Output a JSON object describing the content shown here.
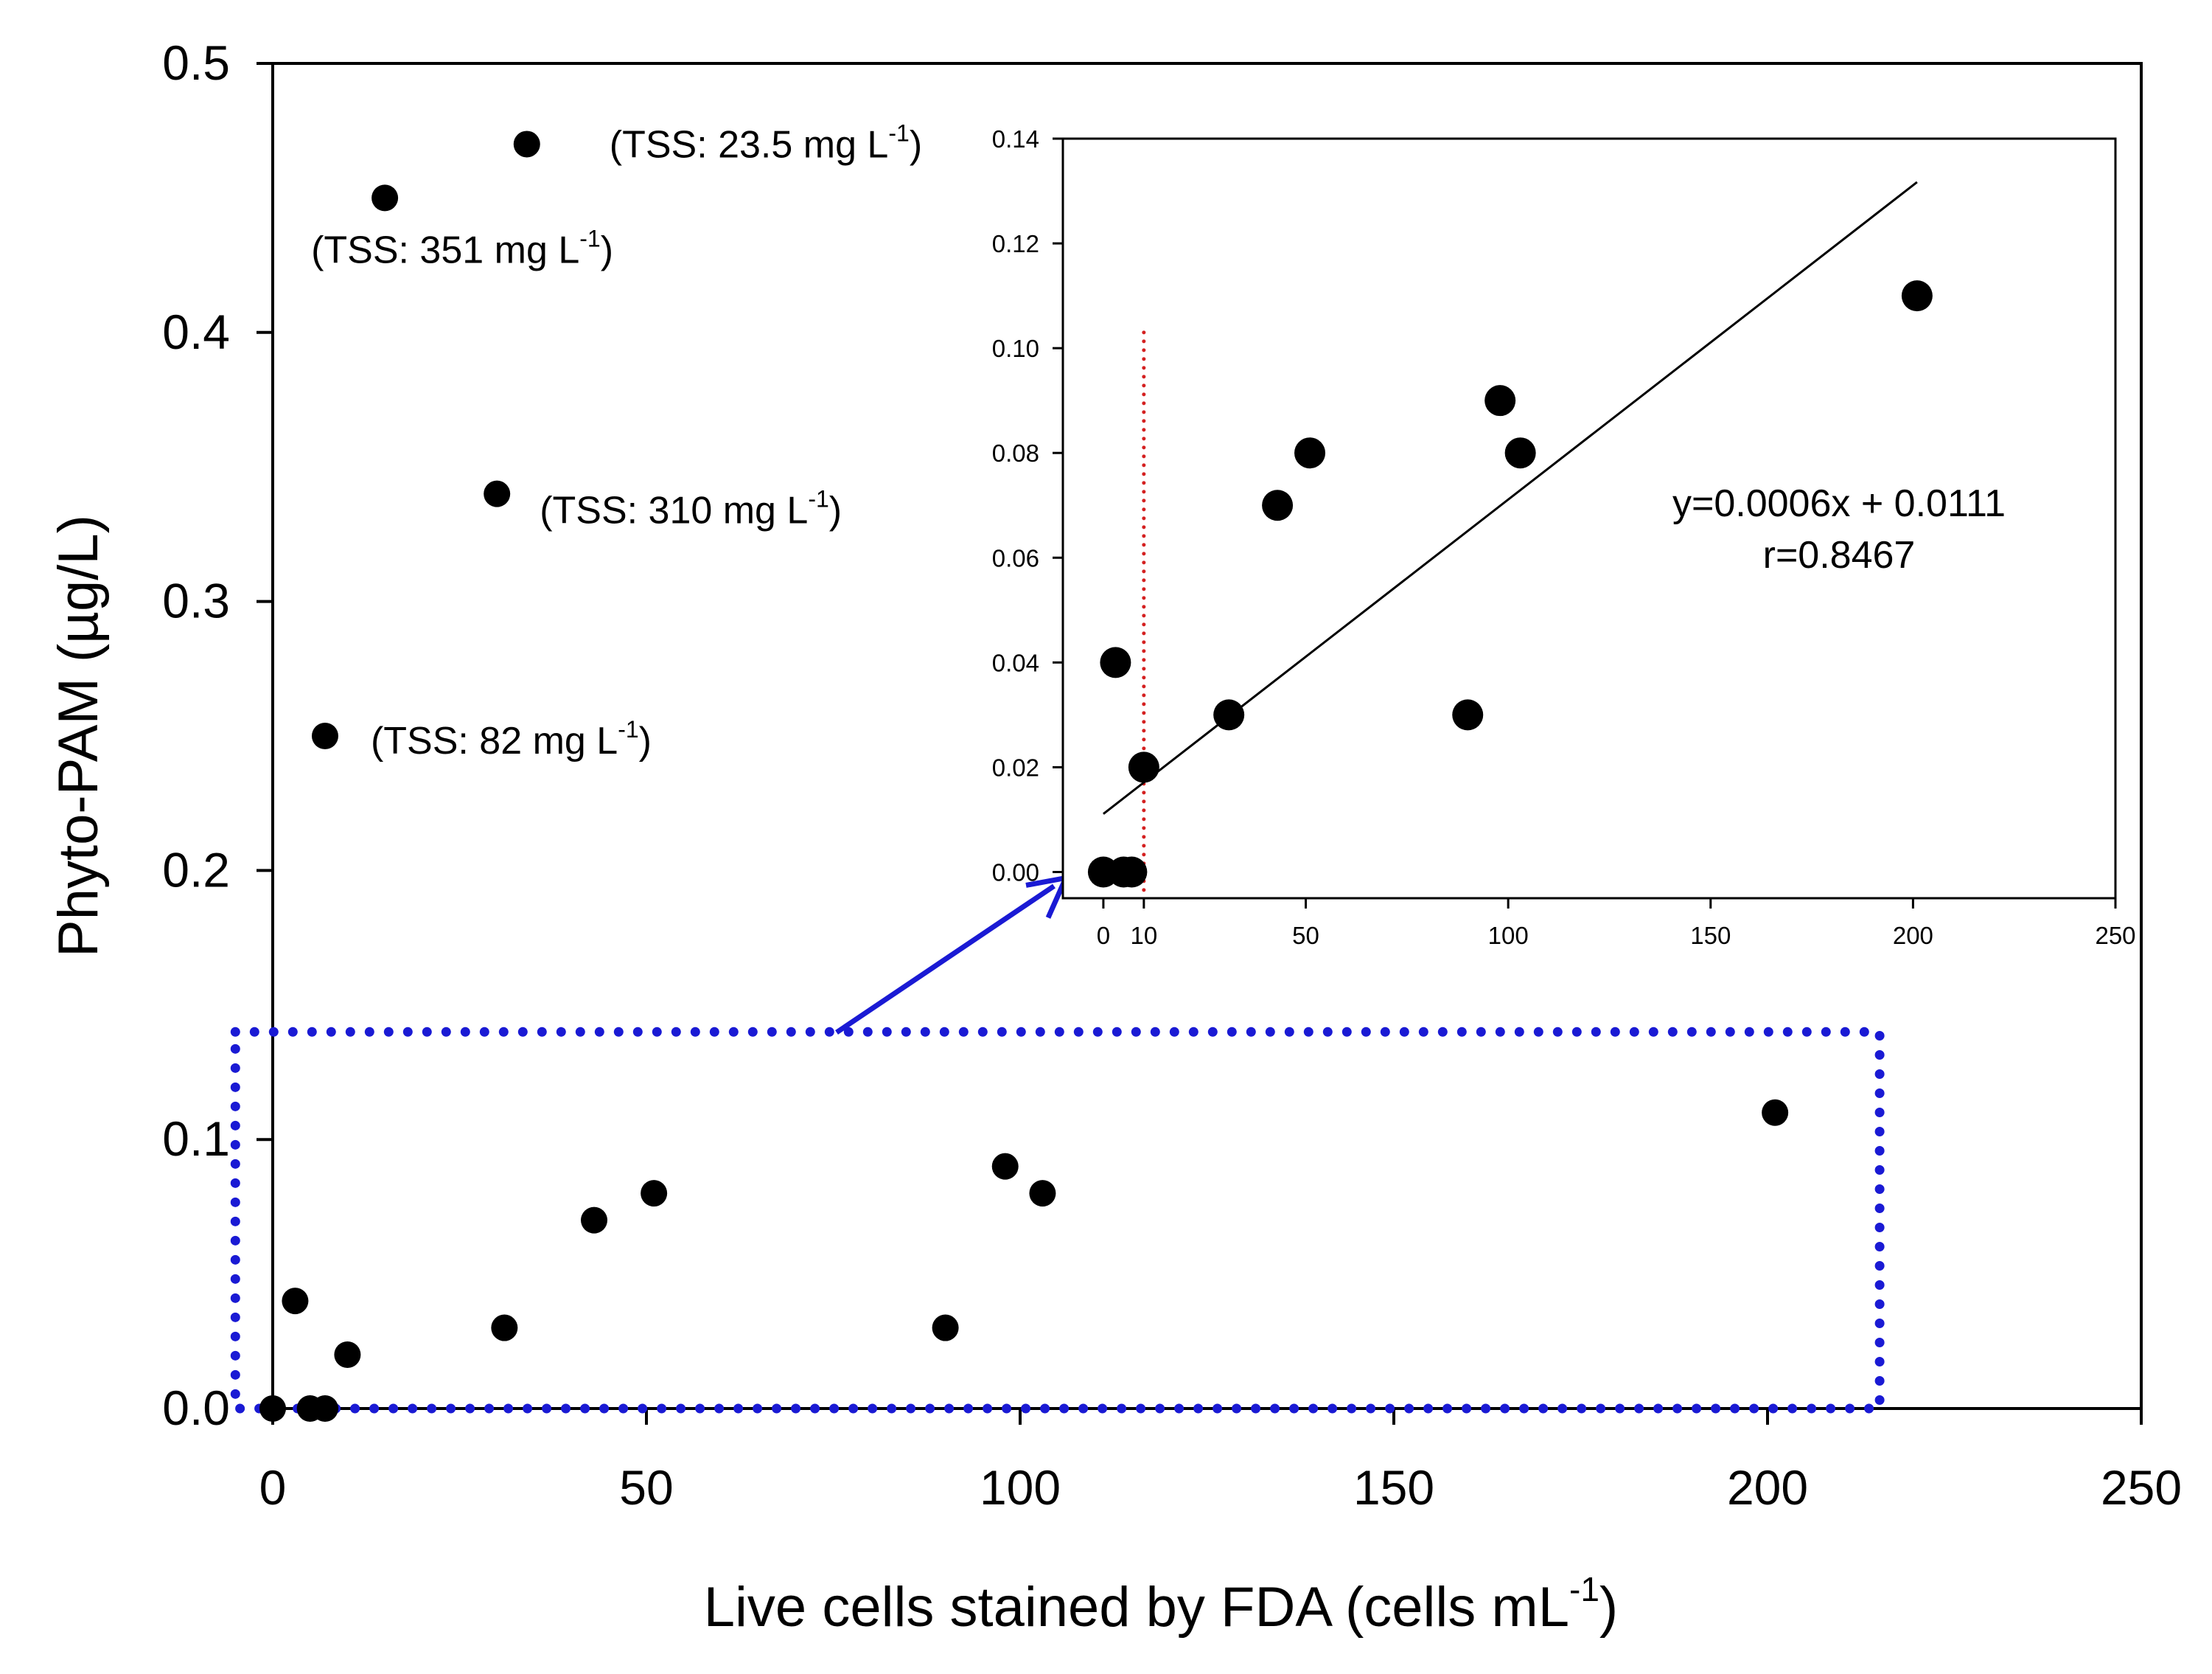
{
  "chart_data": [
    {
      "type": "scatter",
      "title": "",
      "xlabel": "Live cells stained by FDA (cells mL",
      "xlabel_sup": "-1",
      "xlabel_end": ")",
      "ylabel": "Phyto-PAM (µg/L)",
      "xlim": [
        0,
        250
      ],
      "ylim": [
        0,
        0.5
      ],
      "xticks": [
        0,
        50,
        100,
        150,
        200,
        250
      ],
      "yticks": [
        0.0,
        0.1,
        0.2,
        0.3,
        0.4,
        0.5
      ],
      "xtick_labels": [
        "0",
        "50",
        "100",
        "150",
        "200",
        "250"
      ],
      "ytick_labels": [
        "0.0",
        "0.1",
        "0.2",
        "0.3",
        "0.4",
        "0.5"
      ],
      "grid": false,
      "series": [
        {
          "points": [
            {
              "x": 0,
              "y": 0.0
            },
            {
              "x": 5,
              "y": 0.0
            },
            {
              "x": 7,
              "y": 0.0
            },
            {
              "x": 3,
              "y": 0.04
            },
            {
              "x": 10,
              "y": 0.02
            },
            {
              "x": 31,
              "y": 0.03
            },
            {
              "x": 43,
              "y": 0.07
            },
            {
              "x": 51,
              "y": 0.08
            },
            {
              "x": 90,
              "y": 0.03
            },
            {
              "x": 98,
              "y": 0.09
            },
            {
              "x": 103,
              "y": 0.08
            },
            {
              "x": 201,
              "y": 0.11
            },
            {
              "x": 15,
              "y": 0.45
            },
            {
              "x": 34,
              "y": 0.47
            },
            {
              "x": 30,
              "y": 0.34
            },
            {
              "x": 7,
              "y": 0.25
            }
          ]
        }
      ],
      "annotations": [
        {
          "text": "(TSS: 23.5 mg L",
          "sup": "-1",
          "end": ")",
          "x": 34,
          "y": 0.47
        },
        {
          "text": "(TSS: 351 mg L",
          "sup": "-1",
          "end": ")",
          "x": 15,
          "y": 0.45
        },
        {
          "text": "(TSS: 310 mg L",
          "sup": "-1",
          "end": ")",
          "x": 30,
          "y": 0.34
        },
        {
          "text": "(TSS: 82 mg L",
          "sup": "-1",
          "end": ")",
          "x": 7,
          "y": 0.25
        }
      ],
      "highlight_box": {
        "color": "#1a1ad4",
        "style": "dotted",
        "x_range": [
          -5,
          215
        ],
        "y_range": [
          0,
          0.14
        ]
      },
      "arrow_color": "#1a1ad4"
    },
    {
      "type": "scatter",
      "title": "",
      "xlabel": "",
      "ylabel": "",
      "xlim": [
        -10,
        250
      ],
      "ylim": [
        -0.005,
        0.14
      ],
      "xticks": [
        0,
        10,
        50,
        100,
        150,
        200,
        250
      ],
      "yticks": [
        0.0,
        0.02,
        0.04,
        0.06,
        0.08,
        0.1,
        0.12,
        0.14
      ],
      "xtick_labels": [
        "0",
        "10",
        "50",
        "100",
        "150",
        "200",
        "250"
      ],
      "ytick_labels": [
        "0.00",
        "0.02",
        "0.04",
        "0.06",
        "0.08",
        "0.10",
        "0.12",
        "0.14"
      ],
      "grid": false,
      "series": [
        {
          "points": [
            {
              "x": 0,
              "y": 0.0
            },
            {
              "x": 5,
              "y": 0.0
            },
            {
              "x": 7,
              "y": 0.0
            },
            {
              "x": 3,
              "y": 0.04
            },
            {
              "x": 10,
              "y": 0.02
            },
            {
              "x": 31,
              "y": 0.03
            },
            {
              "x": 43,
              "y": 0.07
            },
            {
              "x": 51,
              "y": 0.08
            },
            {
              "x": 90,
              "y": 0.03
            },
            {
              "x": 98,
              "y": 0.09
            },
            {
              "x": 103,
              "y": 0.08
            },
            {
              "x": 201,
              "y": 0.11
            }
          ]
        }
      ],
      "fit_line": {
        "slope": 0.0006,
        "intercept": 0.0111,
        "x_range": [
          0,
          201
        ]
      },
      "equation_lines": [
        "y=0.0006x + 0.0111",
        "r=0.8467"
      ],
      "vline": {
        "x": 10,
        "y_top": 0.103,
        "color": "#d42020",
        "style": "dotted"
      }
    }
  ]
}
